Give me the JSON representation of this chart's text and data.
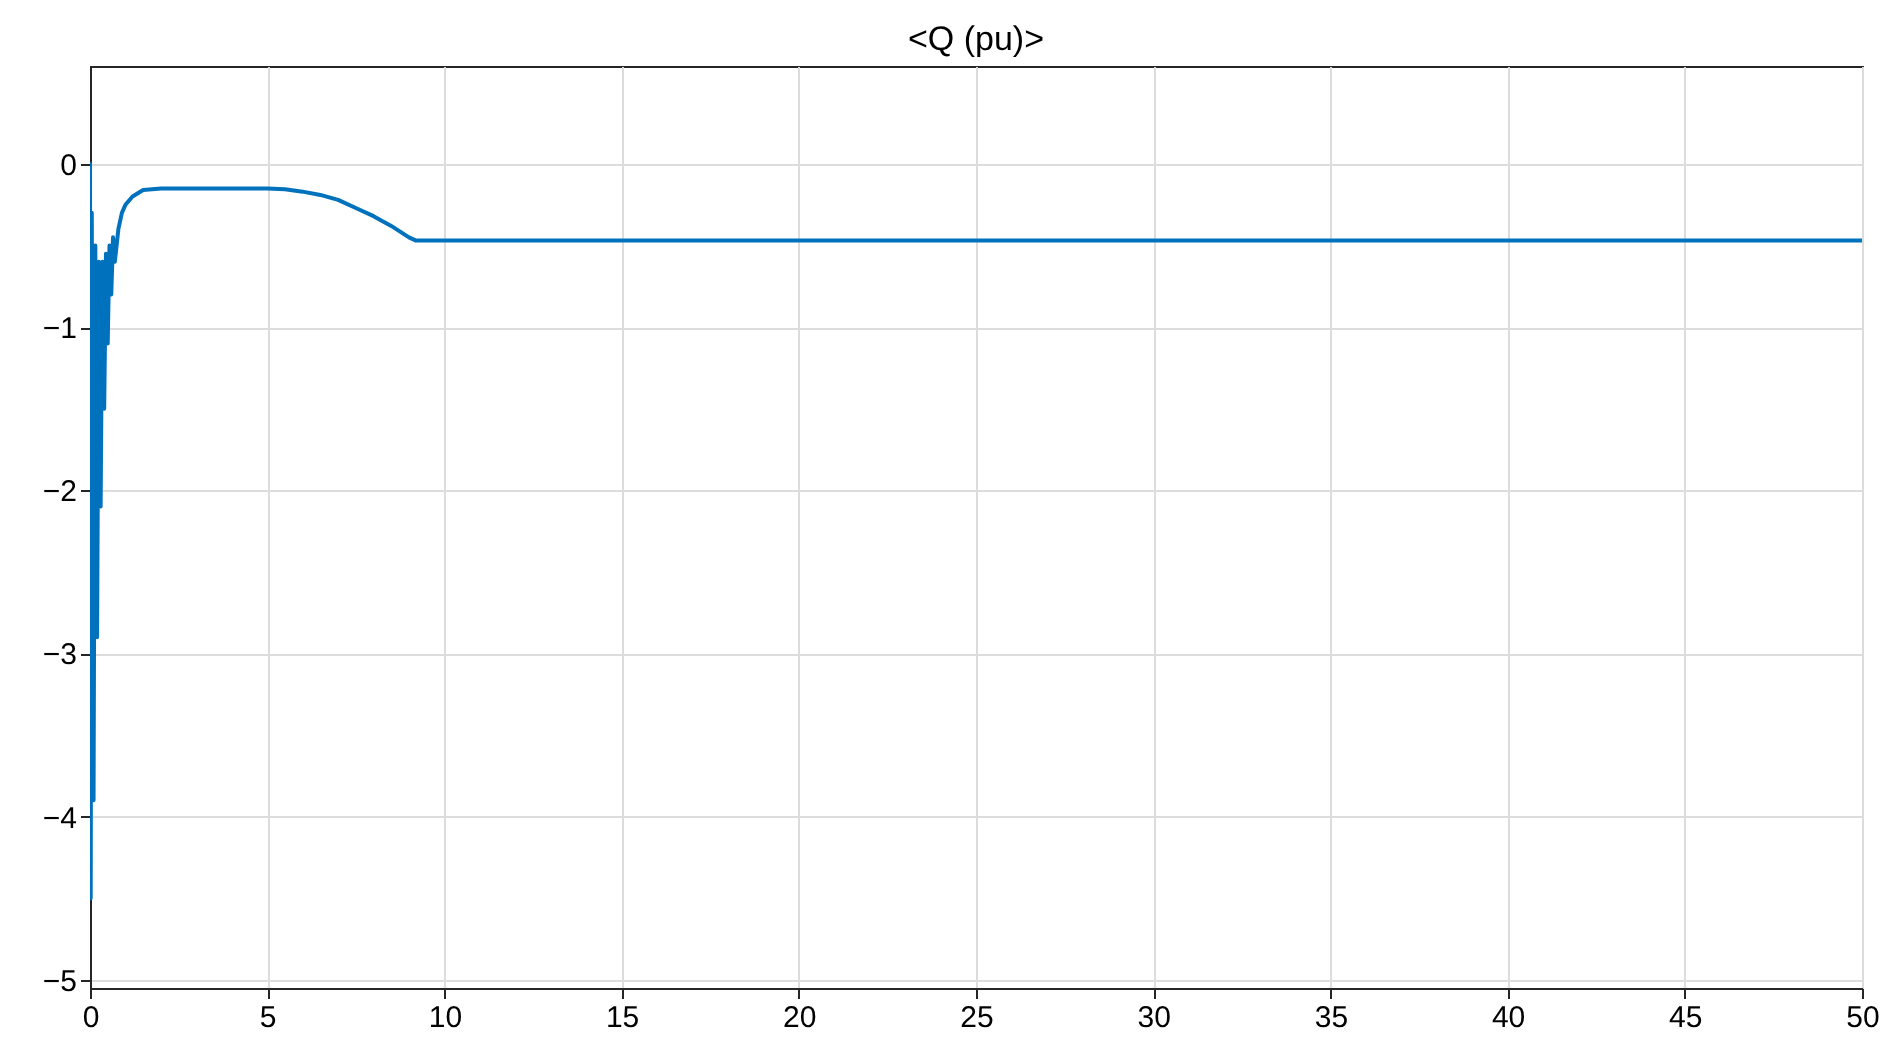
{
  "chart_data": {
    "type": "line",
    "title": "<Q (pu)>",
    "x": [
      0,
      0.02,
      0.05,
      0.1,
      0.15,
      0.2,
      0.25,
      0.3,
      0.35,
      0.4,
      0.45,
      0.5,
      0.55,
      0.6,
      0.65,
      0.7,
      0.8,
      0.9,
      1.0,
      1.2,
      1.5,
      2,
      5,
      5.5,
      6,
      6.5,
      7,
      7.5,
      8,
      8.5,
      9,
      9.2,
      50
    ],
    "series": [
      {
        "color": "#0072bd",
        "values": [
          0,
          -4.5,
          -0.3,
          -3.9,
          -0.5,
          -2.9,
          -0.6,
          -2.1,
          -0.6,
          -1.5,
          -0.55,
          -1.1,
          -0.5,
          -0.8,
          -0.45,
          -0.6,
          -0.4,
          -0.3,
          -0.25,
          -0.2,
          -0.16,
          -0.15,
          -0.15,
          -0.155,
          -0.17,
          -0.19,
          -0.22,
          -0.27,
          -0.32,
          -0.38,
          -0.45,
          -0.47,
          -0.47
        ]
      }
    ],
    "xlim": [
      0,
      50
    ],
    "xticks": [
      0,
      5,
      10,
      15,
      20,
      25,
      30,
      35,
      40,
      45,
      50
    ],
    "ylim": [
      -5.05,
      0.6
    ],
    "yticks": [
      -5,
      -4,
      -3,
      -2,
      -1,
      0
    ],
    "grid": true,
    "line_style": "solid"
  }
}
